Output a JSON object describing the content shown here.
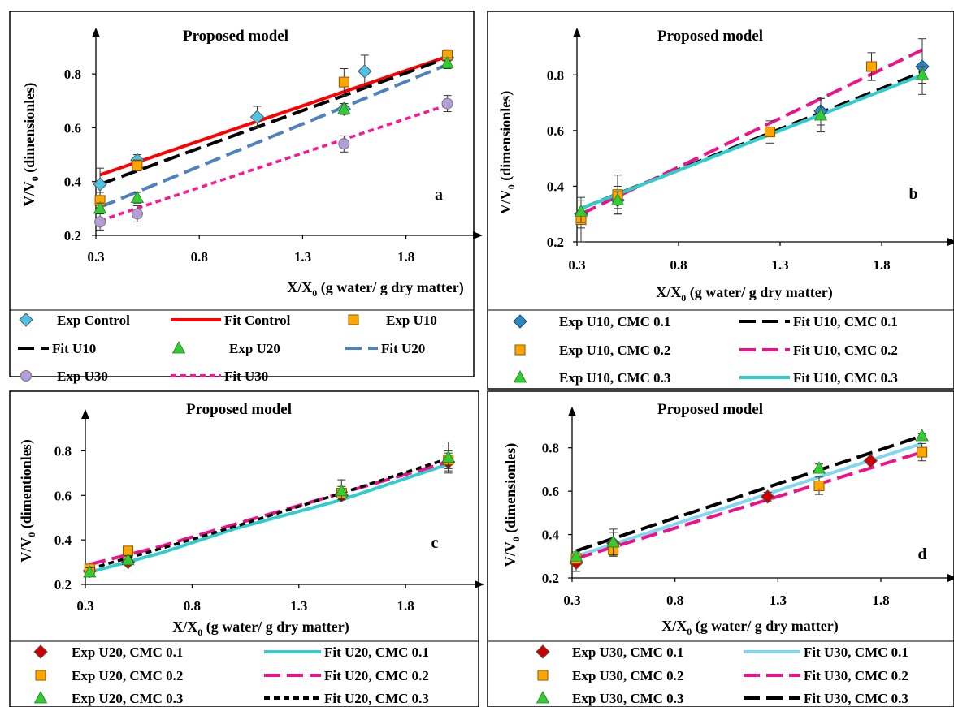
{
  "colors": {
    "control_marker": "#4dc3e6",
    "control_line": "#ff0000",
    "u10_marker": "#ffa500",
    "u10_line": "#000000",
    "u20_marker": "#33cc33",
    "u20_line": "#4f81bd",
    "u30_marker": "#b39ddb",
    "u30_line": "#ff1493",
    "cmc01_marker_b": "#2e86c1",
    "cmc02_marker": "#ffa500",
    "cmc03_marker": "#33cc33",
    "cmc01_marker_cd": "#cc0000",
    "fit_cyan": "#33cccc",
    "fit_lightcyan": "#80d8f0",
    "fit_pink": "#ee1289",
    "fit_black": "#000000"
  },
  "chart_data": [
    {
      "id": "a",
      "type": "scatter",
      "title": "Proposed model",
      "panel_letter": "a",
      "xlabel_main": "X/X",
      "xlabel_sub": "0",
      "xlabel_rest": " (g water/ g dry matter)",
      "ylabel_main": "V/V",
      "ylabel_sub": "0",
      "ylabel_rest": " (dimensionles)",
      "xlim": [
        0.3,
        2.1
      ],
      "ylim": [
        0.2,
        0.9
      ],
      "xticks": [
        "0.3",
        "0.8",
        "1.3",
        "1.8"
      ],
      "yticks": [
        "0.2",
        "0.4",
        "0.6",
        "0.8"
      ],
      "ytick_values": [
        0.2,
        0.4,
        0.6,
        0.8
      ],
      "xtick_values": [
        0.3,
        0.8,
        1.3,
        1.8
      ],
      "grid": false,
      "legend_position": "bottom",
      "series": [
        {
          "name": "Exp Control",
          "kind": "marker",
          "marker": "diamond",
          "color_key": "control_marker",
          "x": [
            0.32,
            0.5,
            1.08,
            1.5,
            1.6,
            2.0
          ],
          "y": [
            0.39,
            0.48,
            0.64,
            0.67,
            0.81,
            0.86
          ],
          "err": [
            0.06,
            0.02,
            0.04,
            0.02,
            0.06,
            0.02
          ]
        },
        {
          "name": "Fit Control",
          "kind": "line",
          "dash": "solid",
          "color_key": "control_line",
          "x": [
            0.32,
            2.0
          ],
          "y": [
            0.425,
            0.865
          ]
        },
        {
          "name": "Exp U10",
          "kind": "marker",
          "marker": "square",
          "color_key": "u10_marker",
          "x": [
            0.32,
            0.5,
            1.5,
            2.0
          ],
          "y": [
            0.33,
            0.46,
            0.77,
            0.87
          ],
          "err": [
            0.03,
            0.02,
            0.05,
            0.02
          ]
        },
        {
          "name": "Fit U10",
          "kind": "line",
          "dash": "long",
          "color_key": "u10_line",
          "x": [
            0.32,
            2.0
          ],
          "y": [
            0.39,
            0.86
          ]
        },
        {
          "name": "Exp U20",
          "kind": "marker",
          "marker": "triangle",
          "color_key": "u20_marker",
          "x": [
            0.32,
            0.5,
            1.5,
            2.0
          ],
          "y": [
            0.3,
            0.34,
            0.67,
            0.84
          ],
          "err": [
            0.02,
            0.02,
            0.02,
            0.02
          ]
        },
        {
          "name": "Fit U20",
          "kind": "line",
          "dash": "long",
          "color_key": "u20_line",
          "x": [
            0.32,
            2.0
          ],
          "y": [
            0.305,
            0.835
          ]
        },
        {
          "name": "Exp U30",
          "kind": "marker",
          "marker": "circle",
          "color_key": "u30_marker",
          "x": [
            0.32,
            0.5,
            1.5,
            2.0
          ],
          "y": [
            0.25,
            0.28,
            0.54,
            0.69
          ],
          "err": [
            0.03,
            0.03,
            0.03,
            0.03
          ]
        },
        {
          "name": "Fit U30",
          "kind": "line",
          "dash": "short",
          "color_key": "u30_line",
          "x": [
            0.32,
            2.0
          ],
          "y": [
            0.255,
            0.685
          ]
        }
      ]
    },
    {
      "id": "b",
      "type": "scatter",
      "title": "Proposed model",
      "panel_letter": "b",
      "xlabel_main": "X/X",
      "xlabel_sub": "0",
      "xlabel_rest": " (g water/ g dry matter)",
      "ylabel_main": "V/V",
      "ylabel_sub": "0",
      "ylabel_rest": " (dimensionles)",
      "xlim": [
        0.3,
        2.1
      ],
      "ylim": [
        0.2,
        0.9
      ],
      "xticks": [
        "0.3",
        "0.8",
        "1.3",
        "1.8"
      ],
      "yticks": [
        "0.2",
        "0.4",
        "0.6",
        "0.8"
      ],
      "ytick_values": [
        0.2,
        0.4,
        0.6,
        0.8
      ],
      "xtick_values": [
        0.3,
        0.8,
        1.3,
        1.8
      ],
      "grid": false,
      "legend_position": "bottom",
      "series": [
        {
          "name": "Exp U10, CMC 0.1",
          "kind": "marker",
          "marker": "diamond",
          "color_key": "cmc01_marker_b",
          "x": [
            0.32,
            0.5,
            1.5,
            2.0
          ],
          "y": [
            0.3,
            0.35,
            0.67,
            0.83
          ],
          "err": [
            0.05,
            0.05,
            0.05,
            0.1
          ]
        },
        {
          "name": "Fit U10, CMC 0.1",
          "kind": "line",
          "dash": "long",
          "color_key": "fit_black",
          "x": [
            0.32,
            2.0
          ],
          "y": [
            0.32,
            0.81
          ]
        },
        {
          "name": "Exp U10, CMC 0.2",
          "kind": "marker",
          "marker": "square",
          "color_key": "cmc02_marker",
          "x": [
            0.32,
            0.5,
            1.25,
            1.75
          ],
          "y": [
            0.28,
            0.37,
            0.595,
            0.83
          ],
          "err": [
            0.08,
            0.07,
            0.04,
            0.05
          ]
        },
        {
          "name": "Fit U10, CMC 0.2",
          "kind": "line",
          "dash": "long",
          "color_key": "fit_pink",
          "x": [
            0.32,
            2.0
          ],
          "y": [
            0.3,
            0.89
          ]
        },
        {
          "name": "Exp U10, CMC 0.3",
          "kind": "marker",
          "marker": "triangle",
          "color_key": "cmc03_marker",
          "x": [
            0.32,
            0.5,
            1.5,
            2.0
          ],
          "y": [
            0.31,
            0.35,
            0.655,
            0.8
          ],
          "err": [
            0.04,
            0.03,
            0.06,
            0.03
          ]
        },
        {
          "name": "Fit U10, CMC 0.3",
          "kind": "line",
          "dash": "solid",
          "color_key": "fit_cyan",
          "x": [
            0.32,
            2.0
          ],
          "y": [
            0.32,
            0.8
          ]
        }
      ]
    },
    {
      "id": "c",
      "type": "scatter",
      "title": "Proposed model",
      "panel_letter": "c",
      "xlabel_main": "X/X",
      "xlabel_sub": "0",
      "xlabel_rest": " (g water/ g dry matter)",
      "ylabel_main": "V/V",
      "ylabel_sub": "0",
      "ylabel_rest": " (dimentionles)",
      "xlim": [
        0.3,
        2.1
      ],
      "ylim": [
        0.2,
        0.9
      ],
      "xticks": [
        "0.3",
        "0.8",
        "1.3",
        "1.8"
      ],
      "yticks": [
        "0.2",
        "0.4",
        "0.6",
        "0.8"
      ],
      "ytick_values": [
        0.2,
        0.4,
        0.6,
        0.8
      ],
      "xtick_values": [
        0.3,
        0.8,
        1.3,
        1.8
      ],
      "grid": false,
      "legend_position": "bottom",
      "series": [
        {
          "name": "Exp U20, CMC 0.1",
          "kind": "marker",
          "marker": "diamond",
          "color_key": "cmc01_marker_cd",
          "x": [
            0.32,
            0.5,
            1.5,
            2.0
          ],
          "y": [
            0.26,
            0.3,
            0.6,
            0.75
          ],
          "err": [
            0.02,
            0.04,
            0.03,
            0.04
          ]
        },
        {
          "name": "Fit U20, CMC 0.1",
          "kind": "line",
          "dash": "solid",
          "color_key": "fit_cyan",
          "x": [
            0.32,
            0.65,
            1.0,
            1.5,
            2.0
          ],
          "y": [
            0.255,
            0.34,
            0.45,
            0.58,
            0.74
          ]
        },
        {
          "name": "Exp U20, CMC 0.2",
          "kind": "marker",
          "marker": "square",
          "color_key": "cmc02_marker",
          "x": [
            0.32,
            0.5,
            1.5,
            2.0
          ],
          "y": [
            0.27,
            0.35,
            0.61,
            0.76
          ],
          "err": [
            0.02,
            0.02,
            0.03,
            0.04
          ]
        },
        {
          "name": "Fit U20, CMC 0.2",
          "kind": "line",
          "dash": "long",
          "color_key": "fit_pink",
          "x": [
            0.32,
            0.65,
            1.0,
            1.5,
            2.0
          ],
          "y": [
            0.29,
            0.37,
            0.47,
            0.61,
            0.75
          ]
        },
        {
          "name": "Exp U20, CMC 0.3",
          "kind": "marker",
          "marker": "triangle",
          "color_key": "cmc03_marker",
          "x": [
            0.32,
            0.5,
            1.5,
            2.0
          ],
          "y": [
            0.255,
            0.31,
            0.62,
            0.77
          ],
          "err": [
            0.02,
            0.02,
            0.05,
            0.07
          ]
        },
        {
          "name": "Fit U20, CMC 0.3",
          "kind": "line",
          "dash": "short",
          "color_key": "fit_black",
          "x": [
            0.32,
            0.65,
            1.0,
            1.5,
            2.0
          ],
          "y": [
            0.27,
            0.36,
            0.46,
            0.61,
            0.765
          ]
        }
      ]
    },
    {
      "id": "d",
      "type": "scatter",
      "title": "Proposed model",
      "panel_letter": "d",
      "xlabel_main": "X/X",
      "xlabel_sub": "0",
      "xlabel_rest": " (g water/ g dry matter)",
      "ylabel_main": "V/V",
      "ylabel_sub": "0",
      "ylabel_rest": " (dimensionles)",
      "xlim": [
        0.3,
        2.1
      ],
      "ylim": [
        0.2,
        0.9
      ],
      "xticks": [
        "0.3",
        "0.8",
        "1.3",
        "1.8"
      ],
      "yticks": [
        "0.2",
        "0.4",
        "0.6",
        "0.8"
      ],
      "ytick_values": [
        0.2,
        0.4,
        0.6,
        0.8
      ],
      "xtick_values": [
        0.3,
        0.8,
        1.3,
        1.8
      ],
      "grid": false,
      "legend_position": "bottom",
      "series": [
        {
          "name": "Exp U30, CMC 0.1",
          "kind": "marker",
          "marker": "diamond",
          "color_key": "cmc01_marker_cd",
          "x": [
            0.32,
            0.5,
            1.25,
            1.75
          ],
          "y": [
            0.27,
            0.36,
            0.575,
            0.74
          ],
          "err": [
            0.04,
            0.05,
            0.02,
            0.01
          ]
        },
        {
          "name": "Fit U30, CMC 0.1",
          "kind": "line",
          "dash": "solid",
          "color_key": "fit_lightcyan",
          "x": [
            0.32,
            2.0
          ],
          "y": [
            0.3,
            0.82
          ]
        },
        {
          "name": "Exp U30, CMC 0.2",
          "kind": "marker",
          "marker": "square",
          "color_key": "cmc02_marker",
          "x": [
            0.32,
            0.5,
            1.5,
            2.0
          ],
          "y": [
            0.29,
            0.33,
            0.625,
            0.78
          ],
          "err": [
            0.02,
            0.03,
            0.04,
            0.04
          ]
        },
        {
          "name": "Fit U30, CMC 0.2",
          "kind": "line",
          "dash": "long",
          "color_key": "fit_pink",
          "x": [
            0.32,
            2.0
          ],
          "y": [
            0.29,
            0.78
          ]
        },
        {
          "name": "Exp U30, CMC 0.3",
          "kind": "marker",
          "marker": "triangle",
          "color_key": "cmc03_marker",
          "x": [
            0.32,
            0.5,
            1.5,
            2.0
          ],
          "y": [
            0.3,
            0.365,
            0.705,
            0.855
          ],
          "err": [
            0.02,
            0.06,
            0.02,
            0.01
          ]
        },
        {
          "name": "Fit U30, CMC 0.3",
          "kind": "line",
          "dash": "long",
          "color_key": "fit_black",
          "x": [
            0.32,
            2.0
          ],
          "y": [
            0.325,
            0.855
          ]
        }
      ]
    }
  ]
}
